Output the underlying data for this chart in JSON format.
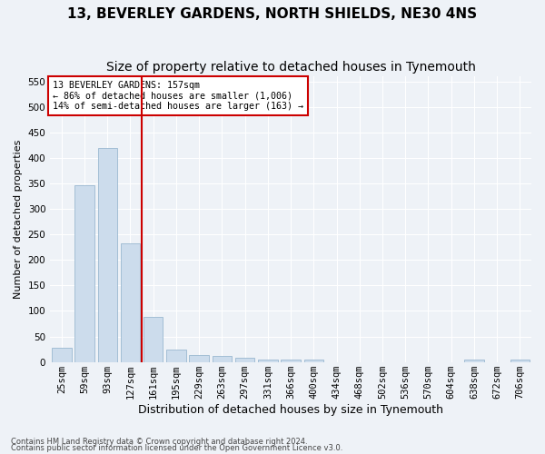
{
  "title": "13, BEVERLEY GARDENS, NORTH SHIELDS, NE30 4NS",
  "subtitle": "Size of property relative to detached houses in Tynemouth",
  "xlabel": "Distribution of detached houses by size in Tynemouth",
  "ylabel": "Number of detached properties",
  "categories": [
    "25sqm",
    "59sqm",
    "93sqm",
    "127sqm",
    "161sqm",
    "195sqm",
    "229sqm",
    "263sqm",
    "297sqm",
    "331sqm",
    "366sqm",
    "400sqm",
    "434sqm",
    "468sqm",
    "502sqm",
    "536sqm",
    "570sqm",
    "604sqm",
    "638sqm",
    "672sqm",
    "706sqm"
  ],
  "values": [
    27,
    347,
    420,
    232,
    88,
    24,
    14,
    12,
    8,
    5,
    4,
    4,
    0,
    0,
    0,
    0,
    0,
    0,
    4,
    0,
    4
  ],
  "bar_color": "#ccdcec",
  "bar_edge_color": "#9ab8d0",
  "property_line_x": 3.5,
  "property_line_color": "#cc0000",
  "annotation_text": "13 BEVERLEY GARDENS: 157sqm\n← 86% of detached houses are smaller (1,006)\n14% of semi-detached houses are larger (163) →",
  "annotation_box_color": "#ffffff",
  "annotation_box_edge": "#cc0000",
  "footer1": "Contains HM Land Registry data © Crown copyright and database right 2024.",
  "footer2": "Contains public sector information licensed under the Open Government Licence v3.0.",
  "ylim": [
    0,
    560
  ],
  "yticks": [
    0,
    50,
    100,
    150,
    200,
    250,
    300,
    350,
    400,
    450,
    500,
    550
  ],
  "title_fontsize": 11,
  "subtitle_fontsize": 10,
  "xlabel_fontsize": 9,
  "ylabel_fontsize": 8,
  "tick_fontsize": 7.5,
  "footer_fontsize": 6,
  "bg_color": "#eef2f7",
  "plot_bg_color": "#eef2f7"
}
